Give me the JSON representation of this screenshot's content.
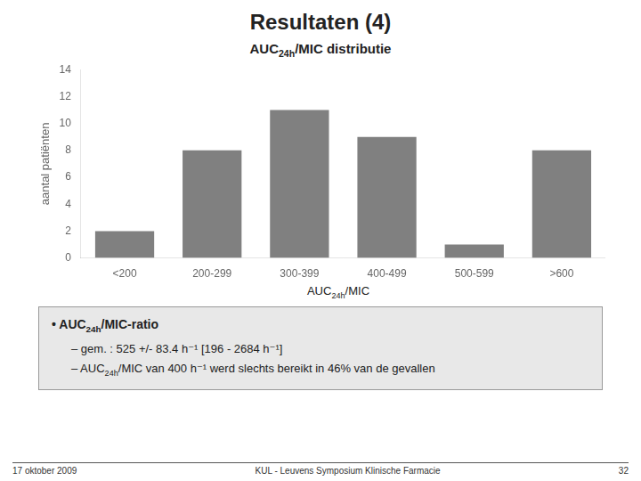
{
  "chart_data": {
    "type": "bar",
    "title": "Resultaten (4)",
    "subtitle": "AUC24h/MIC distributie",
    "categories": [
      "<200",
      "200-299",
      "300-399",
      "400-499",
      "500-599",
      ">600"
    ],
    "values": [
      2,
      8,
      11,
      9,
      1,
      8
    ],
    "color": "#808080",
    "xlabel": "AUC24h/MIC",
    "ylabel": "aantal patiënten",
    "ylim": [
      0,
      14
    ],
    "yticks": [
      0,
      2,
      4,
      6,
      8,
      10,
      12,
      14
    ],
    "grid": false,
    "annotations": [
      "• AUC24h/MIC-ratio",
      "– gem. : 525 +/- 83.4 h⁻¹ [196 - 2684 h⁻¹]",
      "– AUC24h/MIC van 400 h⁻¹ werd slechts bereikt in 46% van de gevallen",
      "17 oktober 2009",
      "KUL - Leuvens Symposium Klinische Farmacie",
      "32"
    ]
  }
}
